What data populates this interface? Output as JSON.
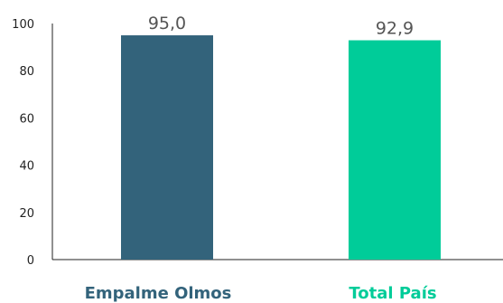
{
  "chart_data": {
    "type": "bar",
    "categories": [
      "Empalme Olmos",
      "Total País"
    ],
    "values": [
      95.0,
      92.9
    ],
    "value_labels": [
      "95,0",
      "92,9"
    ],
    "colors": [
      "#33637b",
      "#00cc99"
    ],
    "title": "",
    "xlabel": "",
    "ylabel": "",
    "ylim": [
      0,
      100
    ],
    "yticks": [
      0,
      20,
      40,
      60,
      80,
      100
    ],
    "grid": false,
    "legend": "none"
  }
}
